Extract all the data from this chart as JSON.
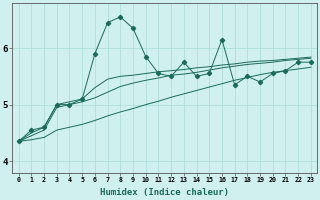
{
  "xlabel": "Humidex (Indice chaleur)",
  "x": [
    0,
    1,
    2,
    3,
    4,
    5,
    6,
    7,
    8,
    9,
    10,
    11,
    12,
    13,
    14,
    15,
    16,
    17,
    18,
    19,
    20,
    21,
    22,
    23
  ],
  "line1": [
    4.35,
    4.55,
    4.6,
    5.0,
    5.0,
    5.1,
    5.9,
    6.45,
    6.55,
    6.35,
    5.85,
    5.55,
    5.5,
    5.75,
    5.5,
    5.55,
    6.15,
    5.35,
    5.5,
    5.4,
    5.55,
    5.6,
    5.75,
    5.75
  ],
  "line2": [
    4.35,
    4.5,
    4.6,
    5.0,
    5.05,
    5.1,
    5.3,
    5.45,
    5.5,
    5.52,
    5.55,
    5.58,
    5.6,
    5.62,
    5.65,
    5.67,
    5.7,
    5.72,
    5.75,
    5.77,
    5.78,
    5.8,
    5.82,
    5.84
  ],
  "line3": [
    4.35,
    4.45,
    4.55,
    4.95,
    5.0,
    5.05,
    5.12,
    5.22,
    5.32,
    5.38,
    5.43,
    5.47,
    5.52,
    5.54,
    5.57,
    5.61,
    5.65,
    5.68,
    5.71,
    5.73,
    5.75,
    5.78,
    5.8,
    5.82
  ],
  "line4": [
    4.35,
    4.38,
    4.42,
    4.55,
    4.6,
    4.65,
    4.72,
    4.8,
    4.87,
    4.93,
    5.0,
    5.06,
    5.13,
    5.19,
    5.25,
    5.31,
    5.37,
    5.43,
    5.48,
    5.53,
    5.57,
    5.6,
    5.63,
    5.66
  ],
  "line_color": "#1a6b5a",
  "bg_color": "#cff0ee",
  "grid_color": "#a8dbd8",
  "ylim": [
    3.8,
    6.8
  ],
  "yticks": [
    4,
    5,
    6
  ],
  "xlim": [
    -0.5,
    23.5
  ]
}
